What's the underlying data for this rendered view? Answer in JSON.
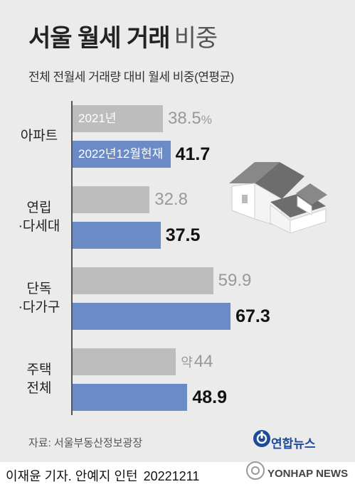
{
  "title": "서울 월세 거래",
  "title_light": "비중",
  "subtitle": "전체 전월세 거래량 대비 월세 비중(연평균)",
  "chart_data": {
    "type": "bar",
    "orientation": "horizontal",
    "categories": [
      {
        "lines": [
          "아파트"
        ]
      },
      {
        "lines": [
          "연립",
          "·다세대"
        ]
      },
      {
        "lines": [
          "단독",
          "·다가구"
        ]
      },
      {
        "lines": [
          "주택",
          "전체"
        ]
      }
    ],
    "series": [
      {
        "name": "2021년",
        "values": [
          38.5,
          32.8,
          59.9,
          44
        ],
        "labels": [
          "38.5",
          "32.8",
          "59.9",
          "44"
        ],
        "color": "#bdbdbd"
      },
      {
        "name": "2022년12월현재",
        "values": [
          41.7,
          37.5,
          67.3,
          48.9
        ],
        "labels": [
          "41.7",
          "37.5",
          "67.3",
          "48.9"
        ],
        "color": "#6b8bc7"
      }
    ],
    "first_value_unit": "%",
    "approx_prefix": "약",
    "xlim": [
      0,
      70
    ]
  },
  "source": "자료: 서울부동산정보광장",
  "logo_text": "연합뉴스",
  "credit": "이재윤 기자. 안예지 인턴",
  "date": "20221211",
  "watermark": "YONHAP NEWS",
  "icons": [
    "house-illustration",
    "yonhap-logo-icon"
  ]
}
